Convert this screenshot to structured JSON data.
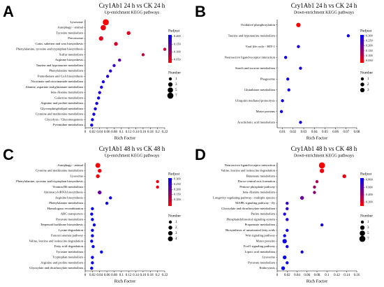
{
  "chart_data": [
    {
      "type": "scatter",
      "label": "A",
      "title": "Cry1Ab1 24 h vs CK 24 h",
      "subtitle": "Up-enrichment KEGG pathways",
      "x_label": "Rich Factor",
      "categories": [
        "Lysosome",
        "Autophagy - animal",
        "Tyrosine metabolism",
        "Peroxisome",
        "Cutin, suberine and wax biosynthesis",
        "Phenylalanine, tyrosine and tryptophan biosynthesis",
        "Sulfur metabolism",
        "Arginine biosynthesis",
        "Taurine and hypotaurine metabolism",
        "Phenylalanine metabolism",
        "Pantothenate and CoA biosynthesis",
        "Nicotinate and nicotinamide metabolism",
        "Alanine, aspartate and glutamate metabolism",
        "beta-Alanine metabolism",
        "Galactose metabolism",
        "Arginine and proline metabolism",
        "Glycerophospholipid metabolism",
        "Cysteine and methionine metabolism",
        "Glycolysis / Gluconeogenesis",
        "Pyrimidine metabolism"
      ],
      "values": [
        0.057,
        0.05,
        0.12,
        0.044,
        0.085,
        0.22,
        0.16,
        0.095,
        0.08,
        0.07,
        0.062,
        0.05,
        0.045,
        0.04,
        0.037,
        0.032,
        0.028,
        0.024,
        0.02,
        0.018
      ],
      "padj": [
        0.03,
        0.04,
        0.05,
        0.05,
        0.06,
        0.06,
        0.07,
        0.15,
        0.17,
        0.18,
        0.18,
        0.19,
        0.19,
        0.19,
        0.2,
        0.2,
        0.2,
        0.2,
        0.2,
        0.2
      ],
      "number": [
        7,
        5,
        2,
        3,
        2,
        1,
        1,
        1,
        1,
        1,
        1,
        1,
        1,
        1,
        1,
        1,
        1,
        1,
        1,
        1
      ],
      "xlim": [
        0,
        0.22
      ],
      "xticks": [
        0,
        0.02,
        0.04,
        0.06,
        0.08,
        0.1,
        0.12,
        0.14,
        0.16,
        0.18,
        0.2,
        0.22
      ],
      "padj_title": "Padjust",
      "padj_lim": [
        0.03,
        0.21
      ],
      "padj_ticks": [
        {
          "value": 0.2,
          "label": "0.200"
        },
        {
          "value": 0.15,
          "label": "0.150"
        },
        {
          "value": 0.1,
          "label": "0.100"
        },
        {
          "value": 0.05,
          "label": "0.050"
        }
      ],
      "number_title": "Number",
      "number_ticks": [
        1,
        3,
        5,
        7
      ],
      "color_low": "#ff0000",
      "color_high": "#0000ff"
    },
    {
      "type": "scatter",
      "label": "B",
      "title": "Cry1Ab1 24 h vs CK 24 h",
      "subtitle": "Down-enrichment KEGG pathways",
      "x_label": "Rich Factor",
      "categories": [
        "Oxidative phosphorylation",
        "Taurine and hypotaurine metabolism",
        "Viral life cycle - HIV-1",
        "Neuroactive ligand-receptor interaction",
        "Starch and sucrose metabolism",
        "Phagosome",
        "Glutathione metabolism",
        "Ubiquitin mediated proteolysis",
        "Motor proteins",
        "Arachidonic acid metabolism"
      ],
      "values": [
        0.025,
        0.072,
        0.025,
        0.013,
        0.027,
        0.015,
        0.016,
        0.01,
        0.009,
        0.027
      ],
      "padj": [
        0.03,
        0.3,
        0.28,
        0.29,
        0.28,
        0.29,
        0.29,
        0.3,
        0.3,
        0.29
      ],
      "number": [
        3,
        1,
        1,
        1,
        1,
        1,
        1,
        1,
        1,
        1
      ],
      "xlim": [
        0.005,
        0.08
      ],
      "xticks": [
        0.01,
        0.02,
        0.03,
        0.04,
        0.05,
        0.06,
        0.07,
        0.08
      ],
      "padj_title": "Padjust",
      "padj_lim": [
        0.03,
        0.31
      ],
      "padj_ticks": [
        {
          "value": 0.3,
          "label": "0.300"
        },
        {
          "value": 0.25,
          "label": "0.250"
        },
        {
          "value": 0.2,
          "label": "0.200"
        },
        {
          "value": 0.15,
          "label": "0.150"
        },
        {
          "value": 0.1,
          "label": "0.100"
        },
        {
          "value": 0.05,
          "label": "0.050"
        }
      ],
      "number_title": "Number",
      "number_ticks": [
        1,
        2,
        3
      ],
      "color_low": "#ff0000",
      "color_high": "#0000ff"
    },
    {
      "type": "scatter",
      "label": "C",
      "title": "Cry1Ab1 48 h vs CK 48 h",
      "subtitle": "Up-enrichment KEGG pathways",
      "x_label": "Rich Factor",
      "categories": [
        "Autophagy - animal",
        "Cysteine and methionine metabolism",
        "Lysosome",
        "Phenylalanine, tyrosine and tryptophan biosynthesis",
        "Vitamin B6 metabolism",
        "Aminoacyl-tRNA biosynthesis",
        "Arginine biosynthesis",
        "Phenylalanine metabolism",
        "Homologous recombination",
        "ABC transporters",
        "Pyruvate metabolism",
        "Terpenoid backbone biosynthesis",
        "Lysine degradation",
        "Fanconi anemia pathway",
        "Valine, leucine and isoleucine degradation",
        "Fatty acid degradation",
        "Tyrosine metabolism",
        "Tryptophan metabolism",
        "Arginine and proline metabolism",
        "Glyoxylate and dicarboxylate metabolism"
      ],
      "values": [
        0.035,
        0.04,
        0.035,
        0.2,
        0.2,
        0.04,
        0.07,
        0.06,
        0.02,
        0.018,
        0.02,
        0.025,
        0.02,
        0.02,
        0.018,
        0.022,
        0.045,
        0.02,
        0.02,
        0.018
      ],
      "padj": [
        0.04,
        0.05,
        0.05,
        0.06,
        0.06,
        0.2,
        0.3,
        0.3,
        0.3,
        0.3,
        0.3,
        0.3,
        0.3,
        0.3,
        0.3,
        0.3,
        0.3,
        0.3,
        0.3,
        0.3
      ],
      "number": [
        4,
        2,
        2,
        1,
        1,
        2,
        1,
        1,
        1,
        1,
        1,
        1,
        1,
        1,
        1,
        1,
        1,
        1,
        1,
        1
      ],
      "xlim": [
        0,
        0.22
      ],
      "xticks": [
        0,
        0.02,
        0.04,
        0.06,
        0.08,
        0.1,
        0.12,
        0.14,
        0.16,
        0.18,
        0.2,
        0.22
      ],
      "padj_title": "Padjust",
      "padj_lim": [
        0.04,
        0.31
      ],
      "padj_ticks": [
        {
          "value": 0.3,
          "label": "0.300"
        },
        {
          "value": 0.25,
          "label": "0.250"
        },
        {
          "value": 0.2,
          "label": "0.200"
        },
        {
          "value": 0.15,
          "label": "0.150"
        },
        {
          "value": 0.1,
          "label": "0.100"
        }
      ],
      "number_title": "Number",
      "number_ticks": [
        1,
        2,
        3,
        4
      ],
      "color_low": "#ff0000",
      "color_high": "#0000ff"
    },
    {
      "type": "scatter",
      "label": "D",
      "title": "Cry1Ab1 48 h vs CK 48 h",
      "subtitle": "Down-enrichment KEGG pathways",
      "x_label": "Rich Factor",
      "categories": [
        "Neuroactive ligand-receptor interaction",
        "Valine, leucine and isoleucine degradation",
        "Butanoate metabolism",
        "Dorso-ventral axis formation",
        "Pentose phosphate pathway",
        "beta-Alanine metabolism",
        "Longevity regulating pathway - multiple species",
        "MAPK signaling pathway - fly",
        "Glyoxylate and dicarboxylate metabolism",
        "Purine metabolism",
        "Phosphatidylinositol signaling system",
        "Propanoate metabolism",
        "Biosynthesis of unsaturated fatty acids",
        "Wnt signaling pathway",
        "Motor proteins",
        "FoxO signaling pathway",
        "Lipoic acid metabolism",
        "Lysosome",
        "Pyruvate metabolism",
        "Endocytosis"
      ],
      "values": [
        0.09,
        0.09,
        0.135,
        0.08,
        0.075,
        0.075,
        0.05,
        0.02,
        0.02,
        0.015,
        0.02,
        0.09,
        0.02,
        0.015,
        0.015,
        0.02,
        0.05,
        0.015,
        0.02,
        0.012
      ],
      "padj": [
        0.1,
        0.12,
        0.15,
        0.35,
        0.4,
        0.45,
        0.55,
        0.7,
        0.7,
        0.75,
        0.75,
        0.78,
        0.8,
        0.8,
        0.8,
        0.8,
        0.8,
        0.82,
        0.82,
        0.82
      ],
      "number": [
        7,
        3,
        2,
        1,
        1,
        1,
        2,
        1,
        1,
        1,
        1,
        1,
        1,
        1,
        3,
        1,
        1,
        2,
        1,
        2
      ],
      "xlim": [
        0,
        0.16
      ],
      "xticks": [
        0,
        0.02,
        0.04,
        0.06,
        0.08,
        0.1,
        0.12,
        0.14,
        0.16
      ],
      "padj_title": "Padjust",
      "padj_lim": [
        0.1,
        0.85
      ],
      "padj_ticks": [
        {
          "value": 0.8,
          "label": "0.800"
        },
        {
          "value": 0.6,
          "label": "0.600"
        },
        {
          "value": 0.4,
          "label": "0.400"
        },
        {
          "value": 0.2,
          "label": "0.200"
        }
      ],
      "number_title": "Number",
      "number_ticks": [
        1,
        3,
        5,
        7
      ],
      "color_low": "#ff0000",
      "color_high": "#0000ff"
    }
  ]
}
